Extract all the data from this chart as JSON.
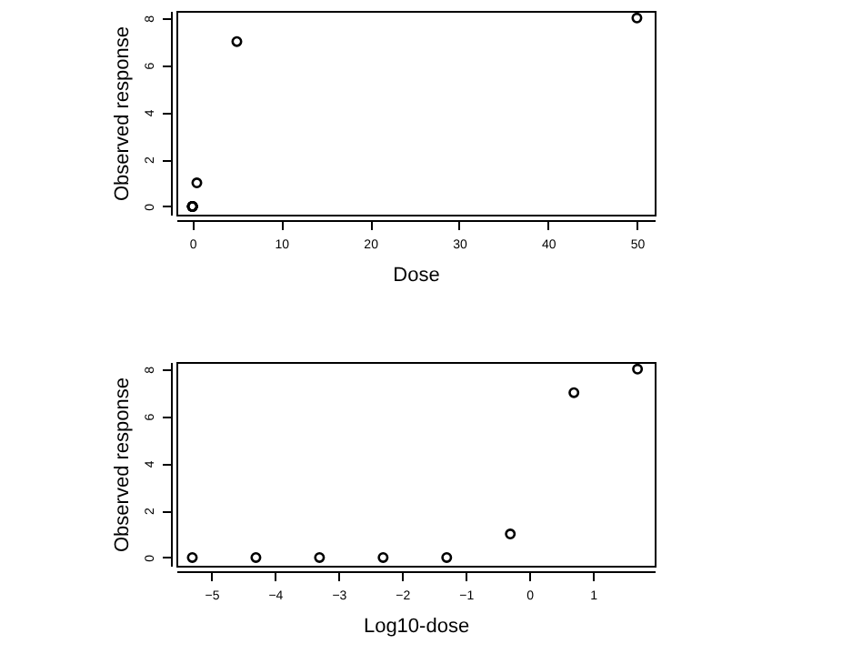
{
  "chart_data": [
    {
      "type": "scatter",
      "xlabel": "Dose",
      "ylabel": "Observed response",
      "x": [
        0,
        0,
        0,
        0,
        0,
        0.5,
        5,
        50
      ],
      "values": [
        0,
        0,
        0,
        0,
        0,
        1,
        7,
        8
      ],
      "color": "#000000",
      "marker": "circle",
      "xlim": [
        -1.8,
        52
      ],
      "ylim": [
        -0.35,
        8.3
      ],
      "xticks": [
        0,
        10,
        20,
        30,
        40,
        50
      ],
      "yticks": [
        0,
        2,
        4,
        6,
        8
      ],
      "grid": false
    },
    {
      "type": "scatter",
      "xlabel": "Log10-dose",
      "ylabel": "Observed response",
      "x": [
        -5.3,
        -4.3,
        -3.3,
        -2.3,
        -1.3,
        -0.3,
        0.7,
        1.7
      ],
      "values": [
        0,
        0,
        0,
        0,
        0,
        1,
        7,
        8
      ],
      "color": "#000000",
      "marker": "circle",
      "xlim": [
        -5.55,
        1.97
      ],
      "ylim": [
        -0.35,
        8.3
      ],
      "xticks": [
        -5,
        -4,
        -3,
        -2,
        -1,
        0,
        1
      ],
      "yticks": [
        0,
        2,
        4,
        6,
        8
      ],
      "grid": false
    }
  ]
}
